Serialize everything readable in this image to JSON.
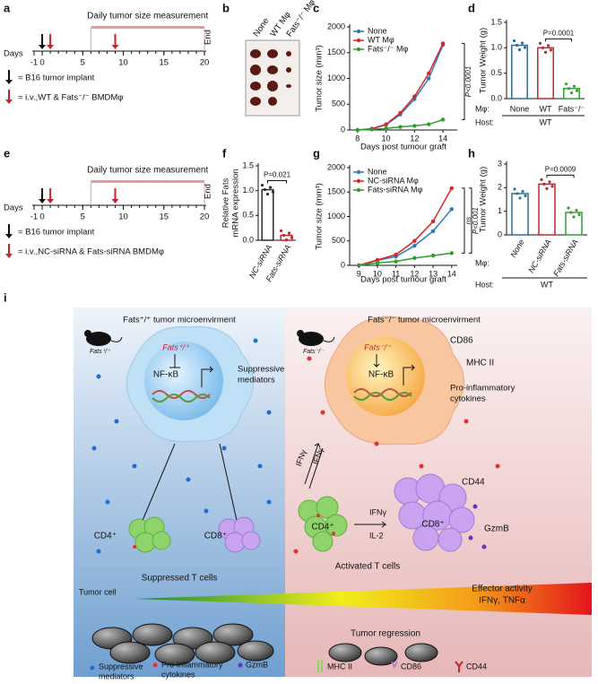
{
  "panel_labels": [
    "a",
    "b",
    "c",
    "d",
    "e",
    "f",
    "g",
    "h",
    "i"
  ],
  "panel_a": {
    "axis_label": "Days",
    "ticks": [
      -1,
      0,
      5,
      10,
      15,
      20
    ],
    "banner": "Daily tumor size measurement",
    "end": "End",
    "legend": [
      "= B16 tumor implant",
      "= i.v.,WT & Fats⁻/⁻ BMDMφ"
    ]
  },
  "panel_b": {
    "labels": [
      "None",
      "WT Mφ",
      "Fats⁻/⁻ Mφ"
    ]
  },
  "panel_e": {
    "axis_label": "Days",
    "ticks": [
      -1,
      0,
      5,
      10,
      15,
      20
    ],
    "banner": "Daily tumor size measurement",
    "end": "End",
    "legend": [
      "= B16 tumor implant",
      "= i.v.,NC-siRNA & Fats-siRNA BMDMφ"
    ]
  },
  "chart_data": [
    {
      "type": "line",
      "ylabel": "Tumor size (mm³)",
      "xlabel": "Days post tumour graft",
      "x": [
        8,
        9,
        10,
        11,
        12,
        13,
        14
      ],
      "series": [
        {
          "name": "None",
          "color": "#2b7bba",
          "values": [
            0,
            20,
            100,
            300,
            600,
            1000,
            1650
          ]
        },
        {
          "name": "WT Mφ",
          "color": "#d62728",
          "values": [
            0,
            25,
            110,
            330,
            650,
            1100,
            1680
          ]
        },
        {
          "name": "Fats⁻/⁻ Mφ",
          "color": "#2ca02c",
          "values": [
            0,
            10,
            30,
            60,
            80,
            110,
            200
          ]
        }
      ],
      "xlim": [
        7.7,
        15
      ],
      "xticks": [
        8,
        10,
        12,
        14
      ],
      "ylim": [
        0,
        2000
      ],
      "yticks": [
        0,
        500,
        1000,
        1500,
        2000
      ],
      "annotations": [
        "P<0.0001"
      ],
      "legend": "upper left"
    },
    {
      "type": "bar",
      "ylabel": "Tumor Weight (g)",
      "categories": [
        "None",
        "WT",
        "Fats⁻/⁻"
      ],
      "values": [
        1.05,
        1.0,
        0.2
      ],
      "colors": [
        "#2b6f97",
        "#c0262d",
        "#3a9b3a"
      ],
      "ylim": [
        0,
        1.5
      ],
      "yticks": [
        {
          "value": 0,
          "label": "0.0"
        },
        {
          "value": 0.5,
          "label": "0.5"
        },
        {
          "value": 1,
          "label": "1.0"
        },
        {
          "value": 1.5,
          "label": "1.5"
        }
      ],
      "annotations": [
        "P=0.0001"
      ],
      "row_labels": [
        "Mφ:",
        "Host:"
      ],
      "host": "WT"
    },
    {
      "type": "bar",
      "ylabel": [
        "Relative Fats",
        "mRNA expression"
      ],
      "categories": [
        "NC-siRNA",
        "Fats-siRNA"
      ],
      "values": [
        1.02,
        0.1
      ],
      "colors": [
        "#2b2b2b",
        "#c0262d"
      ],
      "ylim": [
        0,
        1.5
      ],
      "yticks": [
        {
          "value": 0,
          "label": "0.0"
        },
        {
          "value": 0.5,
          "label": "0.5"
        },
        {
          "value": 1,
          "label": "1.0"
        },
        {
          "value": 1.5,
          "label": "1.5"
        }
      ],
      "annotations": [
        "P=0.021"
      ]
    },
    {
      "type": "line",
      "ylabel": "Tumor size (mm³)",
      "xlabel": "Days post tumour graft",
      "x": [
        9,
        10,
        11,
        12,
        13,
        14
      ],
      "series": [
        {
          "name": "None",
          "color": "#2b7bba",
          "values": [
            0,
            100,
            180,
            400,
            700,
            1150
          ]
        },
        {
          "name": "NC-siRNA Mφ",
          "color": "#d62728",
          "values": [
            0,
            110,
            220,
            500,
            900,
            1580
          ]
        },
        {
          "name": "Fats-siRNA Mφ",
          "color": "#2ca02c",
          "values": [
            0,
            50,
            80,
            150,
            200,
            250
          ]
        }
      ],
      "xlim": [
        8.7,
        14.3
      ],
      "xticks": [
        9,
        10,
        11,
        12,
        13,
        14
      ],
      "ylim": [
        0,
        2000
      ],
      "yticks": [
        0,
        500,
        1000,
        1500,
        2000
      ],
      "annotations": [
        "ns",
        "P<0.001"
      ],
      "legend": "upper left"
    },
    {
      "type": "bar",
      "ylabel": "Tumor Weight (g)",
      "categories": [
        "None",
        "NC-siRNA",
        "Fats-siRNA"
      ],
      "values": [
        1.75,
        2.15,
        0.95
      ],
      "colors": [
        "#2b6f97",
        "#c0262d",
        "#3a9b3a"
      ],
      "ylim": [
        0,
        3
      ],
      "yticks": [
        0,
        1,
        2,
        3
      ],
      "annotations": [
        "P=0.0009"
      ],
      "row_labels": [
        "Mφ:",
        "Host:"
      ],
      "host": "WT"
    }
  ],
  "panel_i": {
    "left_title": "Fats⁺/⁺ tumor microenvirment",
    "right_title": "Fats⁻/⁻ tumor microenvirment",
    "left_mouse": "Fats⁺/⁺",
    "right_mouse": "Fats⁻/⁻",
    "left_gene": "Fats⁺/⁺",
    "right_gene": "Fats⁻/⁻",
    "nfkb": "NF-κB",
    "suppressive": [
      "Suppressive",
      "mediators"
    ],
    "cd86": "CD86",
    "mhc": "MHC II",
    "proinf": [
      "Pro-inflammatory",
      "cytokines"
    ],
    "ifn": "IFNγ",
    "il2": "IL-2",
    "cd4": "CD4⁺",
    "cd8": "CD8⁺",
    "cd44": "CD44",
    "gzmb": "GzmB",
    "suppressed": "Suppressed T cells",
    "activated": "Activated T cells",
    "tumor_cell": "Tumor cell",
    "effector": [
      "Effector  activity",
      "IFNγ, TNFα"
    ],
    "regression": "Tumor regression",
    "legend": [
      "Suppressive",
      "mediators",
      "Pro-inflammatory",
      "cytokines",
      "GzmB",
      "MHC II",
      "CD86",
      "CD44"
    ]
  }
}
